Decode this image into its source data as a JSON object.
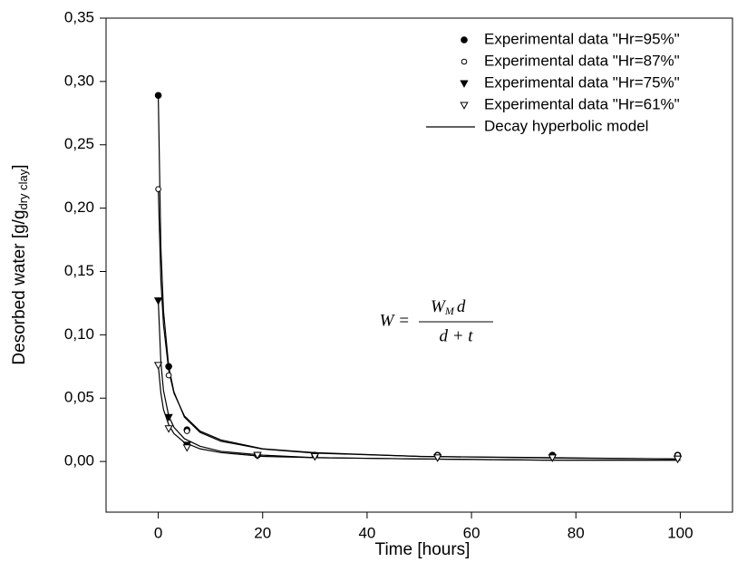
{
  "chart_data": {
    "type": "scatter",
    "x_label": "Time [hours]",
    "y_label": {
      "main": "Desorbed water [g/g",
      "sub": "dry clay",
      "end": "]"
    },
    "xlim": [
      -10,
      110
    ],
    "xticks": [
      0,
      20,
      40,
      60,
      80,
      100
    ],
    "ylim": [
      -0.04,
      0.35
    ],
    "yticks": [
      {
        "value": 0,
        "label": "0,00"
      },
      {
        "value": 0.05,
        "label": "0,05"
      },
      {
        "value": 0.1,
        "label": "0,10"
      },
      {
        "value": 0.15,
        "label": "0,15"
      },
      {
        "value": 0.2,
        "label": "0,20"
      },
      {
        "value": 0.25,
        "label": "0,25"
      },
      {
        "value": 0.3,
        "label": "0,30"
      },
      {
        "value": 0.35,
        "label": "0,35"
      }
    ],
    "legend": "upper right",
    "series": [
      {
        "name": "Experimental data \"Hr=95%\"",
        "marker": "circle-filled",
        "color": "#000000",
        "x": [
          0,
          2,
          5.5,
          19,
          30,
          53.5,
          75.5,
          99.5
        ],
        "values": [
          0.289,
          0.075,
          0.025,
          0.005,
          0.005,
          0.005,
          0.005,
          0.005
        ]
      },
      {
        "name": "Experimental data \"Hr=87%\"",
        "marker": "circle-open",
        "color": "#000000",
        "x": [
          0,
          2,
          5.5,
          19,
          30,
          53.5,
          75.5,
          99.5
        ],
        "values": [
          0.215,
          0.068,
          0.024,
          0.005,
          0.005,
          0.005,
          0.004,
          0.005
        ]
      },
      {
        "name": "Experimental data \"Hr=75%\"",
        "marker": "triangle-filled",
        "color": "#000000",
        "x": [
          0,
          2,
          5.5,
          19,
          30,
          53.5,
          75.5,
          99.5
        ],
        "values": [
          0.127,
          0.035,
          0.013,
          0.005,
          0.004,
          0.003,
          0.003,
          0.002
        ]
      },
      {
        "name": "Experimental data \"Hr=61%\"",
        "marker": "triangle-open",
        "color": "#000000",
        "x": [
          0,
          2,
          5.5,
          19,
          30,
          53.5,
          75.5,
          99.5
        ],
        "values": [
          0.076,
          0.026,
          0.011,
          0.005,
          0.004,
          0.003,
          0.003,
          0.002
        ]
      }
    ],
    "model": {
      "name": "Decay hyperbolic model",
      "color": "#000000",
      "x": [
        0,
        0.5,
        1,
        2,
        3,
        5,
        8,
        12,
        20,
        30,
        50,
        75,
        100
      ],
      "curves": [
        [
          0.289,
          0.169,
          0.119,
          0.075,
          0.055,
          0.035,
          0.023,
          0.016,
          0.0098,
          0.0066,
          0.004,
          0.0027,
          0.002
        ],
        [
          0.215,
          0.143,
          0.108,
          0.072,
          0.054,
          0.036,
          0.024,
          0.017,
          0.01,
          0.007,
          0.004,
          0.003,
          0.002
        ],
        [
          0.127,
          0.078,
          0.056,
          0.036,
          0.027,
          0.018,
          0.012,
          0.008,
          0.005,
          0.003,
          0.002,
          0.001,
          0.001
        ],
        [
          0.076,
          0.054,
          0.041,
          0.029,
          0.022,
          0.015,
          0.01,
          0.007,
          0.004,
          0.003,
          0.002,
          0.001,
          0.001
        ]
      ]
    },
    "equation": {
      "lhs": "W =",
      "numerator": "W",
      "numerator_sub": "M",
      "numerator_tail": "d",
      "denominator": "d + t"
    }
  }
}
